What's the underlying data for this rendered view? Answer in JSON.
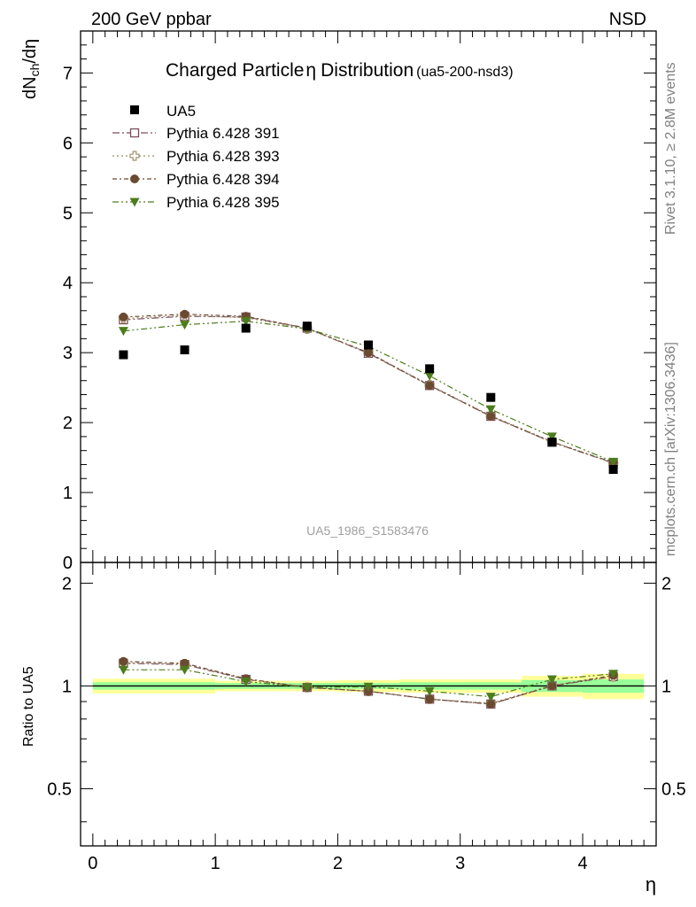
{
  "header": {
    "left": "200 GeV ppbar",
    "right": "NSD"
  },
  "side_labels": {
    "rivet": "Rivet 3.1.10, ≥ 2.8M events",
    "mcplots": "mcplots.cern.ch [arXiv:1306.3436]"
  },
  "chart_data": [
    {
      "type": "scatter",
      "panel": "main",
      "title": "Charged Particle η Distribution",
      "title_main": "Charged Particle",
      "title_eta": "η",
      "title_rest": "Distribution",
      "title_tag": "(ua5-200-nsd3)",
      "watermark": "UA5_1986_S1583476",
      "ylabel": "dN",
      "ylabel_sub": "ch",
      "ylabel_tail": "/dη",
      "xlim": [
        -0.1,
        4.6
      ],
      "ylim": [
        0,
        7.6
      ],
      "yticks": [
        0,
        1,
        2,
        3,
        4,
        5,
        6,
        7
      ],
      "x": [
        0.25,
        0.75,
        1.25,
        1.75,
        2.25,
        2.75,
        3.25,
        3.75,
        4.25
      ],
      "data": {
        "name": "UA5",
        "color": "#000000",
        "values": [
          2.97,
          3.04,
          3.35,
          3.38,
          3.11,
          2.77,
          2.36,
          1.72,
          1.33
        ]
      },
      "series": [
        {
          "name": "Pythia 6.428 391",
          "color": "#7a4e5e",
          "marker": "open-square",
          "dash": "8,3,2,3",
          "values": [
            3.47,
            3.52,
            3.51,
            3.35,
            2.99,
            2.53,
            2.09,
            1.72,
            1.42
          ]
        },
        {
          "name": "Pythia 6.428 393",
          "color": "#a08f6a",
          "marker": "open-cross",
          "dash": "2,3",
          "values": [
            3.49,
            3.53,
            3.5,
            3.34,
            3.0,
            2.54,
            2.1,
            1.73,
            1.42
          ]
        },
        {
          "name": "Pythia 6.428 394",
          "color": "#6b4a32",
          "marker": "filled-circle",
          "dash": "5,3,2,3",
          "values": [
            3.51,
            3.55,
            3.52,
            3.35,
            3.0,
            2.53,
            2.09,
            1.72,
            1.43
          ]
        },
        {
          "name": "Pythia 6.428 395",
          "color": "#4c7d1c",
          "marker": "filled-triangle-down",
          "dash": "7,3,2,3,2,3",
          "values": [
            3.31,
            3.4,
            3.45,
            3.34,
            3.09,
            2.67,
            2.19,
            1.8,
            1.44
          ]
        }
      ]
    },
    {
      "type": "scatter",
      "panel": "ratio",
      "ylabel": "Ratio to UA5",
      "xlabel": "η",
      "xlim": [
        -0.1,
        4.6
      ],
      "ylim": [
        0.34,
        2.3
      ],
      "yticks": [
        0.5,
        1,
        2
      ],
      "xticks": [
        0,
        1,
        2,
        3,
        4
      ],
      "x": [
        0.25,
        0.75,
        1.25,
        1.75,
        2.25,
        2.75,
        3.25,
        3.75,
        4.25
      ],
      "bins": [
        [
          0,
          0.5
        ],
        [
          0.5,
          1
        ],
        [
          1,
          1.5
        ],
        [
          1.5,
          2
        ],
        [
          2,
          2.5
        ],
        [
          2.5,
          3
        ],
        [
          3,
          3.5
        ],
        [
          3.5,
          4
        ],
        [
          4,
          4.5
        ]
      ],
      "band_yellow": [
        [
          0.95,
          1.05
        ],
        [
          0.95,
          1.05
        ],
        [
          0.965,
          1.035
        ],
        [
          0.965,
          1.035
        ],
        [
          0.96,
          1.04
        ],
        [
          0.955,
          1.045
        ],
        [
          0.955,
          1.045
        ],
        [
          0.93,
          1.07
        ],
        [
          0.915,
          1.085
        ]
      ],
      "band_green": [
        [
          0.975,
          1.025
        ],
        [
          0.975,
          1.025
        ],
        [
          0.98,
          1.02
        ],
        [
          0.98,
          1.02
        ],
        [
          0.98,
          1.02
        ],
        [
          0.975,
          1.025
        ],
        [
          0.975,
          1.025
        ],
        [
          0.96,
          1.04
        ],
        [
          0.955,
          1.045
        ]
      ],
      "series": [
        {
          "name": "Pythia 6.428 391",
          "values": [
            1.165,
            1.155,
            1.045,
            0.99,
            0.965,
            0.915,
            0.885,
            1.0,
            1.065
          ]
        },
        {
          "name": "Pythia 6.428 393",
          "values": [
            1.17,
            1.16,
            1.045,
            0.99,
            0.965,
            0.915,
            0.89,
            1.005,
            1.065
          ]
        },
        {
          "name": "Pythia 6.428 394",
          "values": [
            1.18,
            1.165,
            1.05,
            0.99,
            0.965,
            0.915,
            0.885,
            1.0,
            1.075
          ]
        },
        {
          "name": "Pythia 6.428 395",
          "values": [
            1.115,
            1.115,
            1.03,
            0.99,
            0.995,
            0.965,
            0.93,
            1.045,
            1.085
          ]
        }
      ]
    }
  ]
}
